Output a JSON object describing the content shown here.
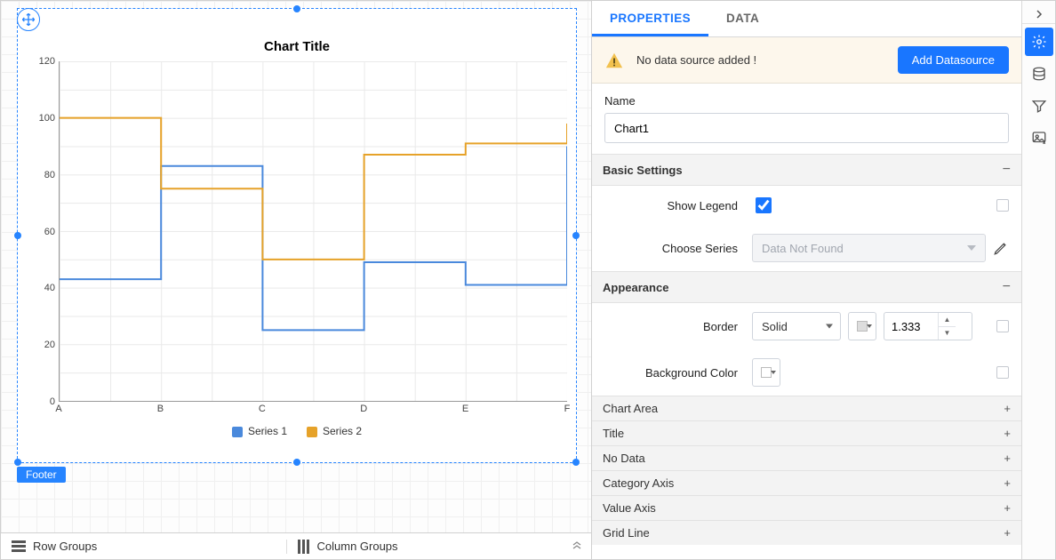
{
  "canvas": {
    "footer_label": "Footer",
    "row_groups_label": "Row Groups",
    "column_groups_label": "Column Groups"
  },
  "chart": {
    "type": "step-line",
    "title": "Chart Title",
    "title_fontsize": 15,
    "categories": [
      "A",
      "B",
      "C",
      "D",
      "E",
      "F"
    ],
    "ylim": [
      0,
      120
    ],
    "ytick_step": 20,
    "yticks": [
      0,
      20,
      40,
      60,
      80,
      100,
      120
    ],
    "grid_color": "#e9e9e9",
    "axis_color": "#999999",
    "background_color": "#ffffff",
    "series": [
      {
        "name": "Series 1",
        "color": "#4a89dc",
        "values": [
          43,
          83,
          25,
          49,
          41,
          90
        ]
      },
      {
        "name": "Series 2",
        "color": "#e6a229",
        "values": [
          100,
          75,
          50,
          87,
          91,
          98
        ]
      }
    ],
    "series_line_width": 2,
    "label_fontsize": 11
  },
  "panel": {
    "tabs": {
      "properties": "PROPERTIES",
      "data": "DATA"
    },
    "active_tab": "properties",
    "alert_text": "No data source added !",
    "add_ds_button": "Add Datasource",
    "name_label": "Name",
    "name_value": "Chart1",
    "sections": {
      "basic": {
        "title": "Basic Settings",
        "show_legend_label": "Show Legend",
        "show_legend_value": true,
        "choose_series_label": "Choose Series",
        "choose_series_placeholder": "Data Not Found"
      },
      "appearance": {
        "title": "Appearance",
        "border_label": "Border",
        "border_style": "Solid",
        "border_width": "1.333",
        "bg_color_label": "Background Color"
      }
    },
    "accordion": [
      "Chart Area",
      "Title",
      "No Data",
      "Category Axis",
      "Value Axis",
      "Grid Line"
    ]
  },
  "rail": {
    "tools": [
      {
        "name": "settings",
        "active": true
      },
      {
        "name": "data",
        "active": false
      },
      {
        "name": "filter",
        "active": false
      },
      {
        "name": "image",
        "active": false
      }
    ]
  }
}
